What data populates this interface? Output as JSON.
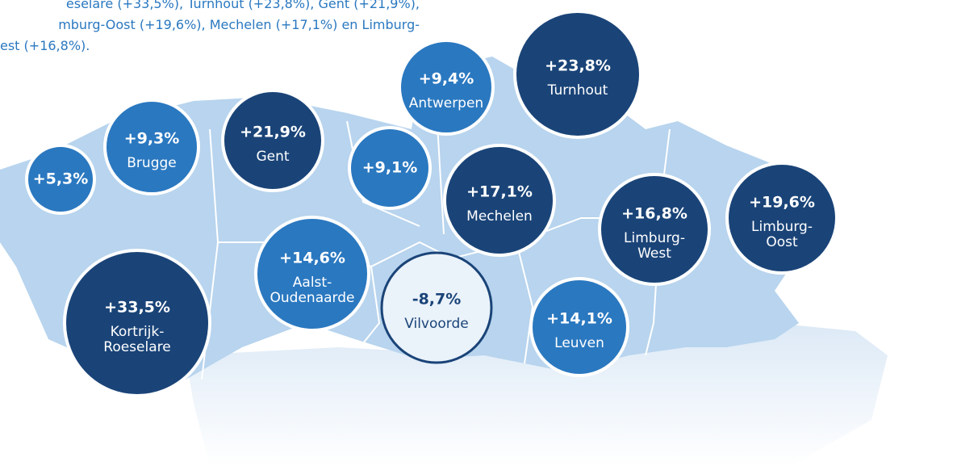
{
  "intro": [
    "eselare (+33,5%), Turnhout (+23,8%), Gent (+21,9%),",
    "mburg-Oost (+19,6%), Mechelen (+17,1%) en Limburg-",
    "est (+16,8%)."
  ],
  "regions": [
    {
      "value": "+5,3%",
      "name": [],
      "color": "#2a78c0"
    },
    {
      "value": "+9,3%",
      "name": [
        "Brugge"
      ],
      "color": "#2a78c0"
    },
    {
      "value": "+21,9%",
      "name": [
        "Gent"
      ],
      "color": "#1a4478"
    },
    {
      "value": "+9,1%",
      "name": [],
      "color": "#2a78c0"
    },
    {
      "value": "+9,4%",
      "name": [
        "Antwerpen"
      ],
      "color": "#2a78c0"
    },
    {
      "value": "+23,8%",
      "name": [
        "Turnhout"
      ],
      "color": "#1a4478"
    },
    {
      "value": "+17,1%",
      "name": [
        "Mechelen"
      ],
      "color": "#1a4478"
    },
    {
      "value": "+16,8%",
      "name": [
        "Limburg-",
        "West"
      ],
      "color": "#1a4478"
    },
    {
      "value": "+19,6%",
      "name": [
        "Limburg-",
        "Oost"
      ],
      "color": "#1a4478"
    },
    {
      "value": "+14,6%",
      "name": [
        "Aalst-",
        "Oudenaarde"
      ],
      "color": "#2a78c0"
    },
    {
      "value": "-8,7%",
      "name": [
        "Vilvoorde"
      ],
      "color": "#eaf2fa"
    },
    {
      "value": "+14,1%",
      "name": [
        "Leuven"
      ],
      "color": "#2a78c0"
    },
    {
      "value": "+33,5%",
      "name": [
        "Kortrijk-",
        "Roeselare"
      ],
      "color": "#1a4478"
    }
  ]
}
